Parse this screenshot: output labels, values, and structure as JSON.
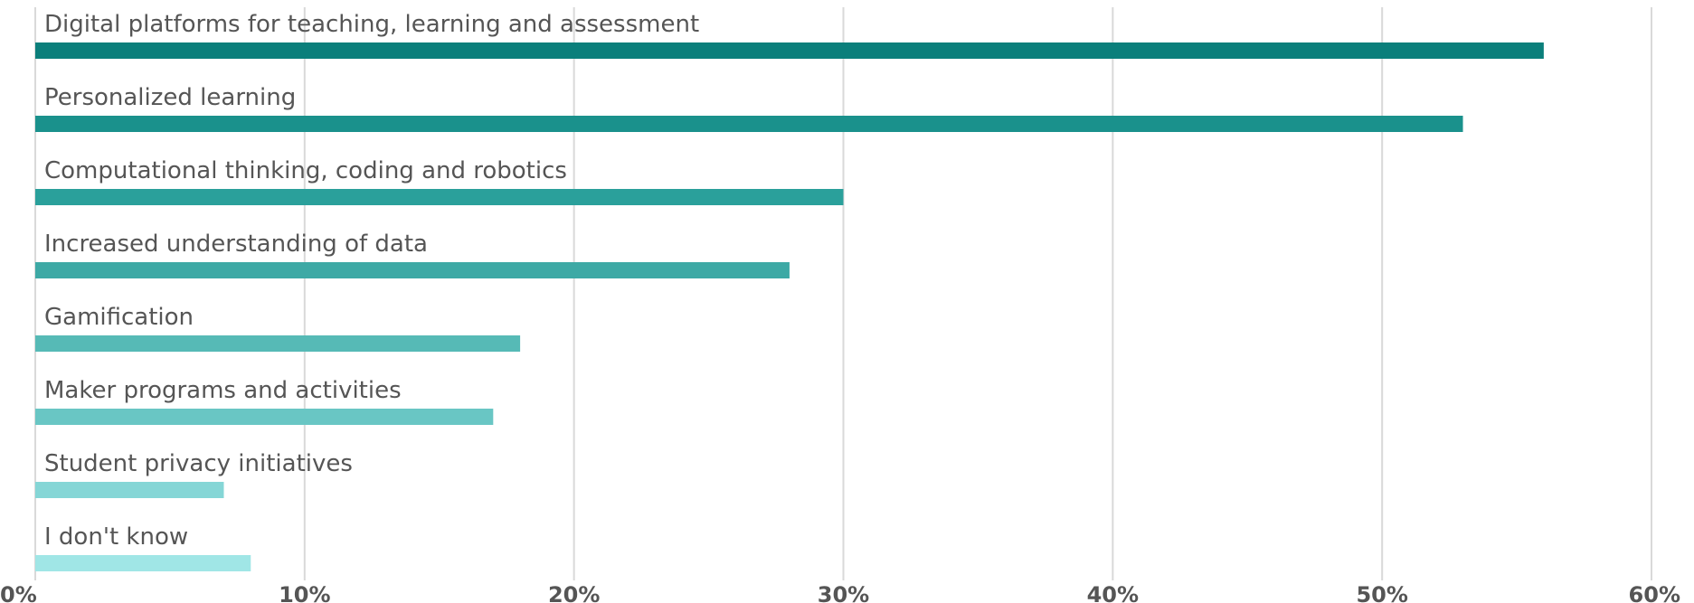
{
  "chart_data": {
    "type": "bar",
    "orientation": "horizontal",
    "categories": [
      "Digital platforms for teaching, learning and assessment",
      "Personalized learning",
      "Computational thinking, coding and robotics",
      "Increased understanding of data",
      "Gamification",
      "Maker programs and activities",
      "Student privacy initiatives",
      "I don't know"
    ],
    "values": [
      56,
      53,
      30,
      28,
      18,
      17,
      7,
      8
    ],
    "colors": [
      "#0b7f7b",
      "#1a918c",
      "#2aa09b",
      "#3da9a5",
      "#56bab6",
      "#69c6c4",
      "#85d6d6",
      "#a0e6e6"
    ],
    "xlim": [
      0,
      60
    ],
    "x_ticks": [
      0,
      10,
      20,
      30,
      40,
      50,
      60
    ],
    "x_tick_labels": [
      "0%",
      "10%",
      "20%",
      "30%",
      "40%",
      "50%",
      "60%"
    ],
    "grid": true,
    "legend": "none",
    "title": "",
    "xlabel": "",
    "ylabel": ""
  }
}
